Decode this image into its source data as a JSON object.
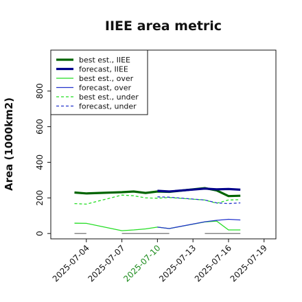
{
  "chart_data": {
    "type": "line",
    "title": "IIEE area metric",
    "xlabel": "",
    "ylabel": "Area (1000km2)",
    "ylim": [
      -30,
      1030
    ],
    "xlim": [
      "2025-07-01",
      "2025-07-20"
    ],
    "yticks": [
      "0",
      "200",
      "400",
      "600",
      "800"
    ],
    "xticks": [
      {
        "label": "2025-07-04",
        "color": "#111111"
      },
      {
        "label": "2025-07-07",
        "color": "#111111"
      },
      {
        "label": "2025-07-10",
        "color": "#1a8a1a"
      },
      {
        "label": "2025-07-13",
        "color": "#111111"
      },
      {
        "label": "2025-07-16",
        "color": "#111111"
      },
      {
        "label": "2025-07-19",
        "color": "#111111"
      }
    ],
    "legend_position": "upper-left",
    "series": [
      {
        "name": "best est., IIEE",
        "color": "#006400",
        "width": 3.2,
        "dash": "",
        "x": [
          "2025-07-03",
          "2025-07-04",
          "2025-07-07",
          "2025-07-08",
          "2025-07-09",
          "2025-07-10",
          "2025-07-11",
          "2025-07-14",
          "2025-07-15",
          "2025-07-16",
          "2025-07-17"
        ],
        "y": [
          230,
          225,
          232,
          236,
          228,
          236,
          234,
          255,
          242,
          210,
          212
        ]
      },
      {
        "name": "forecast, IIEE",
        "color": "#00008b",
        "width": 3.2,
        "dash": "",
        "x": [
          "2025-07-10",
          "2025-07-11",
          "2025-07-14",
          "2025-07-15",
          "2025-07-16",
          "2025-07-17"
        ],
        "y": [
          240,
          236,
          252,
          248,
          250,
          246
        ]
      },
      {
        "name": "best est., over",
        "color": "#22dd22",
        "width": 1.3,
        "dash": "",
        "x": [
          "2025-07-03",
          "2025-07-04",
          "2025-07-07",
          "2025-07-08",
          "2025-07-09",
          "2025-07-10",
          "2025-07-11",
          "2025-07-14",
          "2025-07-15",
          "2025-07-16",
          "2025-07-17"
        ],
        "y": [
          58,
          57,
          16,
          20,
          26,
          36,
          28,
          65,
          70,
          20,
          20
        ]
      },
      {
        "name": "forecast, over",
        "color": "#2233cc",
        "width": 1.3,
        "dash": "",
        "x": [
          "2025-07-10",
          "2025-07-11",
          "2025-07-14",
          "2025-07-15",
          "2025-07-16",
          "2025-07-17"
        ],
        "y": [
          36,
          28,
          66,
          74,
          80,
          76
        ]
      },
      {
        "name": "best est., under",
        "color": "#22dd22",
        "width": 1.3,
        "dash": "4,3",
        "x": [
          "2025-07-03",
          "2025-07-04",
          "2025-07-07",
          "2025-07-08",
          "2025-07-09",
          "2025-07-10",
          "2025-07-11",
          "2025-07-14",
          "2025-07-15",
          "2025-07-16",
          "2025-07-17"
        ],
        "y": [
          168,
          165,
          216,
          212,
          200,
          198,
          202,
          188,
          170,
          188,
          190
        ]
      },
      {
        "name": "forecast, under",
        "color": "#2233cc",
        "width": 1.3,
        "dash": "4,3",
        "x": [
          "2025-07-10",
          "2025-07-11",
          "2025-07-14",
          "2025-07-15",
          "2025-07-16",
          "2025-07-17"
        ],
        "y": [
          206,
          204,
          188,
          172,
          168,
          172
        ]
      }
    ],
    "gray_segments": [
      {
        "x": [
          "2025-07-03",
          "2025-07-04"
        ],
        "y": 0
      },
      {
        "x": [
          "2025-07-07",
          "2025-07-11"
        ],
        "y": 0
      },
      {
        "x": [
          "2025-07-14",
          "2025-07-17"
        ],
        "y": 0
      }
    ],
    "gray_color": "#888888"
  }
}
